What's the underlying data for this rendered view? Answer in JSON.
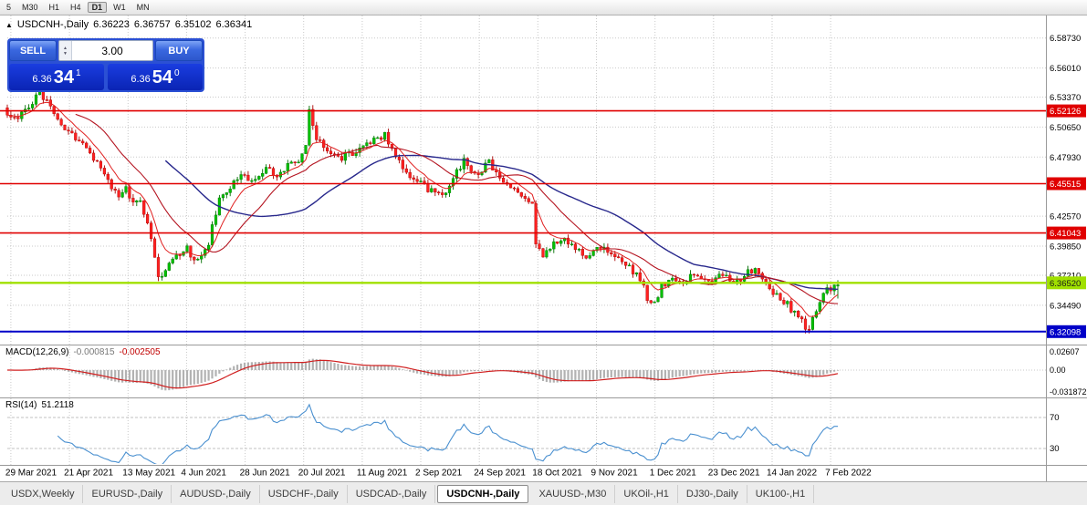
{
  "colors": {
    "grid": "#c9c9c9",
    "candle_up": "#00c000",
    "candle_up_stroke": "#006e00",
    "candle_down": "#ff2020",
    "candle_down_stroke": "#a80000",
    "ma_fast": "#e02020",
    "ma_mid": "#b41420",
    "ma_slow": "#28288c",
    "macd_hist": "#b2b2b2",
    "macd_signal": "#d02020",
    "rsi_line": "#4a90d0",
    "levels": "#c0c0c0"
  },
  "toolbar": {
    "timeframes": [
      "5",
      "M30",
      "H1",
      "H4",
      "D1",
      "W1",
      "MN"
    ],
    "active": "D1"
  },
  "chart_header": {
    "symbol_label": "USDCNH-,Daily",
    "open": "6.36223",
    "high": "6.36757",
    "low": "6.35102",
    "close": "6.36341"
  },
  "trade_panel": {
    "sell_label": "SELL",
    "buy_label": "BUY",
    "volume": "3.00",
    "sell_price_small": "6.36",
    "sell_price_big": "34",
    "sell_price_sup": "1",
    "buy_price_small": "6.36",
    "buy_price_big": "54",
    "buy_price_sup": "0"
  },
  "price_axis": {
    "labels": [
      {
        "text": "6.58730",
        "price": 6.5873
      },
      {
        "text": "6.56010",
        "price": 6.5601
      },
      {
        "text": "6.53370",
        "price": 6.5337
      },
      {
        "text": "6.50650",
        "price": 6.5065
      },
      {
        "text": "6.47930",
        "price": 6.4793
      },
      {
        "text": "6.42570",
        "price": 6.4257
      },
      {
        "text": "6.39850",
        "price": 6.3985
      },
      {
        "text": "6.37210",
        "price": 6.3721
      },
      {
        "text": "6.34490",
        "price": 6.3449
      }
    ],
    "badges": [
      {
        "text": "6.52126",
        "price": 6.52126,
        "bg": "#e00000",
        "fg": "#ffffff"
      },
      {
        "text": "6.45515",
        "price": 6.45515,
        "bg": "#e00000",
        "fg": "#ffffff"
      },
      {
        "text": "6.41043",
        "price": 6.41043,
        "bg": "#e00000",
        "fg": "#ffffff"
      },
      {
        "text": "6.36520",
        "price": 6.3652,
        "bg": "#a0e000",
        "fg": "#1a1a1a"
      },
      {
        "text": "6.32098",
        "price": 6.32098,
        "bg": "#0000c8",
        "fg": "#ffffff"
      }
    ]
  },
  "hlines": [
    {
      "price": 6.52126,
      "color": "#e00000",
      "width": 1.6
    },
    {
      "price": 6.45515,
      "color": "#e00000",
      "width": 1.6
    },
    {
      "price": 6.41043,
      "color": "#e00000",
      "width": 1.6
    },
    {
      "price": 6.3652,
      "color": "#a0e000",
      "width": 2.4
    },
    {
      "price": 6.32098,
      "color": "#0000c8",
      "width": 2
    }
  ],
  "macd_panel": {
    "label": "MACD(12,26,9)",
    "value1": "-0.000815",
    "value2": "-0.002505",
    "axis": [
      {
        "text": "0.02607",
        "value": 0.02607
      },
      {
        "text": "0.00",
        "value": 0
      },
      {
        "text": "-0.031872",
        "value": -0.031872
      }
    ]
  },
  "rsi_panel": {
    "label": "RSI(14)",
    "value": "51.2118",
    "levels": [
      70,
      30
    ],
    "axis": [
      {
        "text": "70",
        "value": 70
      },
      {
        "text": "30",
        "value": 30
      }
    ]
  },
  "x_axis_dates": [
    "29 Mar 2021",
    "21 Apr 2021",
    "13 May 2021",
    "4 Jun 2021",
    "28 Jun 2021",
    "20 Jul 2021",
    "11 Aug 2021",
    "2 Sep 2021",
    "24 Sep 2021",
    "18 Oct 2021",
    "9 Nov 2021",
    "1 Dec 2021",
    "23 Dec 2021",
    "14 Jan 2022",
    "7 Feb 2022"
  ],
  "tabs": {
    "items": [
      "USDX,Weekly",
      "EURUSD-,Daily",
      "AUDUSD-,Daily",
      "USDCHF-,Daily",
      "USDCAD-,Daily",
      "USDCNH-,Daily",
      "XAUUSD-,M30",
      "UKOil-,H1",
      "DJ30-,Daily",
      "UK100-,H1"
    ],
    "active": "USDCNH-,Daily"
  },
  "chart_data": {
    "type": "candlestick",
    "symbol": "USDCNH-",
    "timeframe": "Daily",
    "last_ohlc": {
      "open": 6.36223,
      "high": 6.36757,
      "low": 6.35102,
      "close": 6.36341
    },
    "price_top": 6.592,
    "price_bottom": 6.3142,
    "candle_count": 232,
    "macd_scale": 759,
    "close_keypoints": [
      [
        0,
        6.52
      ],
      [
        2,
        6.512
      ],
      [
        5,
        6.524
      ],
      [
        9,
        6.536
      ],
      [
        11,
        6.528
      ],
      [
        14,
        6.512
      ],
      [
        17,
        6.503
      ],
      [
        20,
        6.494
      ],
      [
        23,
        6.48
      ],
      [
        26,
        6.472
      ],
      [
        29,
        6.452
      ],
      [
        31,
        6.44
      ],
      [
        33,
        6.452
      ],
      [
        35,
        6.438
      ],
      [
        37,
        6.442
      ],
      [
        40,
        6.405
      ],
      [
        42,
        6.368
      ],
      [
        45,
        6.38
      ],
      [
        48,
        6.392
      ],
      [
        50,
        6.396
      ],
      [
        53,
        6.384
      ],
      [
        56,
        6.402
      ],
      [
        59,
        6.44
      ],
      [
        62,
        6.452
      ],
      [
        65,
        6.462
      ],
      [
        69,
        6.458
      ],
      [
        72,
        6.468
      ],
      [
        75,
        6.462
      ],
      [
        78,
        6.472
      ],
      [
        81,
        6.478
      ],
      [
        83,
        6.488
      ],
      [
        84,
        6.522
      ],
      [
        86,
        6.498
      ],
      [
        89,
        6.486
      ],
      [
        92,
        6.478
      ],
      [
        95,
        6.482
      ],
      [
        98,
        6.488
      ],
      [
        102,
        6.496
      ],
      [
        105,
        6.5
      ],
      [
        108,
        6.482
      ],
      [
        111,
        6.462
      ],
      [
        115,
        6.455
      ],
      [
        118,
        6.448
      ],
      [
        121,
        6.442
      ],
      [
        124,
        6.462
      ],
      [
        127,
        6.475
      ],
      [
        131,
        6.462
      ],
      [
        134,
        6.476
      ],
      [
        137,
        6.46
      ],
      [
        140,
        6.45
      ],
      [
        143,
        6.445
      ],
      [
        146,
        6.436
      ],
      [
        147,
        6.4
      ],
      [
        149,
        6.392
      ],
      [
        152,
        6.402
      ],
      [
        155,
        6.405
      ],
      [
        158,
        6.396
      ],
      [
        161,
        6.39
      ],
      [
        164,
        6.4
      ],
      [
        167,
        6.392
      ],
      [
        170,
        6.386
      ],
      [
        173,
        6.378
      ],
      [
        176,
        6.368
      ],
      [
        178,
        6.352
      ],
      [
        180,
        6.346
      ],
      [
        182,
        6.362
      ],
      [
        185,
        6.37
      ],
      [
        188,
        6.366
      ],
      [
        191,
        6.372
      ],
      [
        194,
        6.368
      ],
      [
        196,
        6.368
      ],
      [
        199,
        6.372
      ],
      [
        202,
        6.366
      ],
      [
        205,
        6.372
      ],
      [
        208,
        6.378
      ],
      [
        211,
        6.368
      ],
      [
        213,
        6.358
      ],
      [
        215,
        6.352
      ],
      [
        218,
        6.342
      ],
      [
        221,
        6.33
      ],
      [
        223,
        6.322
      ],
      [
        225,
        6.34
      ],
      [
        227,
        6.356
      ],
      [
        229,
        6.36
      ],
      [
        231,
        6.36341
      ]
    ],
    "indicators": [
      {
        "name": "MACD",
        "params": [
          12,
          26,
          9
        ]
      },
      {
        "name": "RSI",
        "params": [
          14
        ]
      }
    ]
  }
}
